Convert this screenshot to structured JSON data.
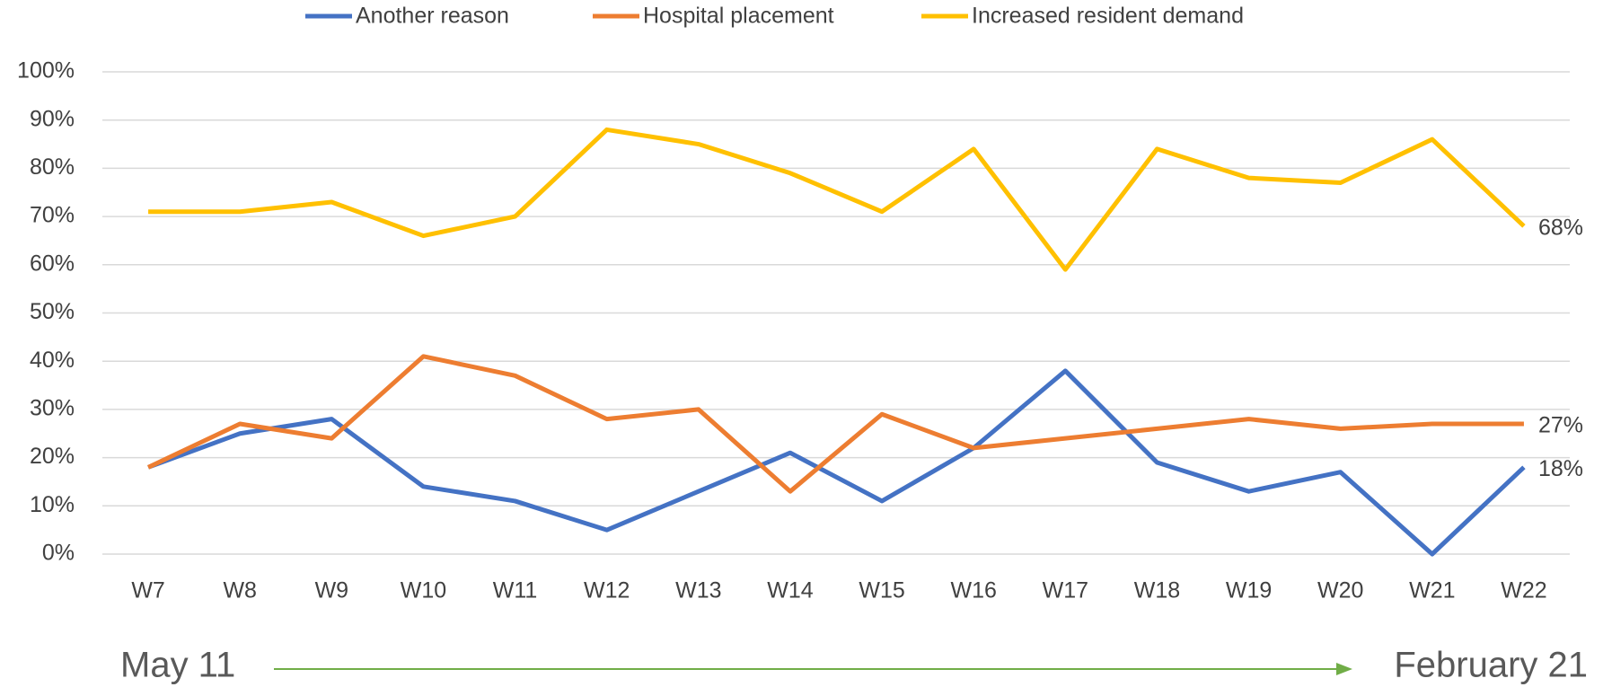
{
  "chart_data": {
    "type": "line",
    "categories": [
      "W7",
      "W8",
      "W9",
      "W10",
      "W11",
      "W12",
      "W13",
      "W14",
      "W15",
      "W16",
      "W17",
      "W18",
      "W19",
      "W20",
      "W21",
      "W22"
    ],
    "series": [
      {
        "name": "Another reason",
        "color": "#4472c4",
        "values": [
          18,
          25,
          28,
          14,
          11,
          5,
          13,
          21,
          11,
          22,
          38,
          19,
          13,
          17,
          0,
          18
        ],
        "value_labels": [
          null,
          null,
          null,
          null,
          null,
          null,
          null,
          null,
          null,
          null,
          null,
          null,
          null,
          null,
          null,
          "18%"
        ]
      },
      {
        "name": "Hospital placement",
        "color": "#ed7d31",
        "values": [
          18,
          27,
          24,
          41,
          37,
          28,
          30,
          13,
          29,
          22,
          24,
          26,
          28,
          26,
          27,
          27
        ],
        "value_labels": [
          null,
          null,
          null,
          null,
          null,
          null,
          null,
          null,
          null,
          null,
          null,
          null,
          null,
          null,
          null,
          "27%"
        ]
      },
      {
        "name": "Increased resident demand",
        "color": "#ffc000",
        "values": [
          71,
          71,
          73,
          66,
          70,
          88,
          85,
          79,
          71,
          84,
          59,
          84,
          78,
          77,
          86,
          68
        ],
        "value_labels": [
          null,
          null,
          null,
          null,
          null,
          null,
          null,
          null,
          null,
          null,
          null,
          null,
          null,
          null,
          null,
          "68%"
        ]
      }
    ],
    "ylim": [
      0,
      100
    ],
    "yticks": [
      {
        "value": 0,
        "label": "0%"
      },
      {
        "value": 10,
        "label": "10%"
      },
      {
        "value": 20,
        "label": "20%"
      },
      {
        "value": 30,
        "label": "30%"
      },
      {
        "value": 40,
        "label": "40%"
      },
      {
        "value": 50,
        "label": "50%"
      },
      {
        "value": 60,
        "label": "60%"
      },
      {
        "value": 70,
        "label": "70%"
      },
      {
        "value": 80,
        "label": "80%"
      },
      {
        "value": 90,
        "label": "90%"
      },
      {
        "value": 100,
        "label": "100%"
      }
    ],
    "grid": true,
    "legend": "top",
    "annotations": {
      "start": "May 11",
      "end": "February 21",
      "color": "#70ad47"
    }
  }
}
